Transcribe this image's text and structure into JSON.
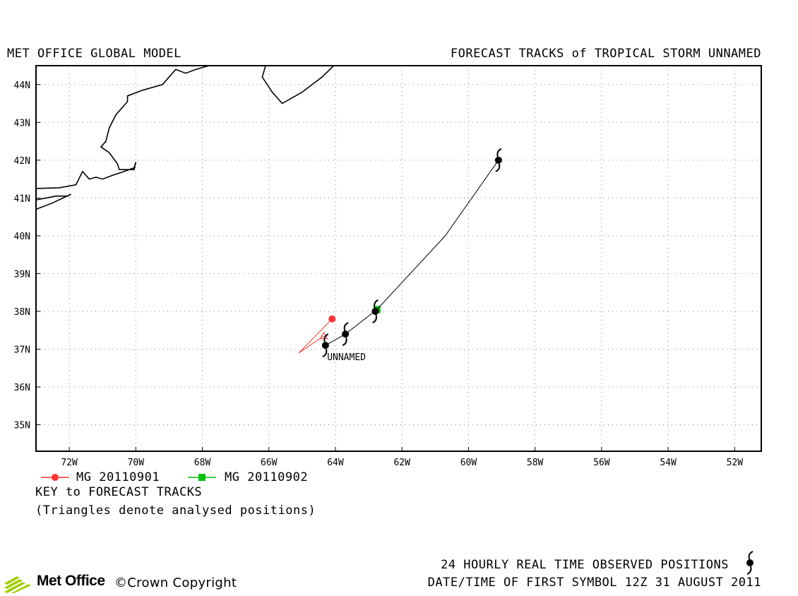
{
  "header": {
    "left_title": "MET OFFICE GLOBAL MODEL",
    "right_title": "FORECAST TRACKS of TROPICAL STORM UNNAMED"
  },
  "map": {
    "lon_range": [
      -73,
      -51.2
    ],
    "lat_range": [
      34.3,
      44.5
    ],
    "lat_ticks": [
      {
        "value": 35,
        "label": "35N"
      },
      {
        "value": 36,
        "label": "36N"
      },
      {
        "value": 37,
        "label": "37N"
      },
      {
        "value": 38,
        "label": "38N"
      },
      {
        "value": 39,
        "label": "39N"
      },
      {
        "value": 40,
        "label": "40N"
      },
      {
        "value": 41,
        "label": "41N"
      },
      {
        "value": 42,
        "label": "42N"
      },
      {
        "value": 43,
        "label": "43N"
      },
      {
        "value": 44,
        "label": "44N"
      }
    ],
    "lon_ticks": [
      {
        "value": -72,
        "label": "72W"
      },
      {
        "value": -70,
        "label": "70W"
      },
      {
        "value": -68,
        "label": "68W"
      },
      {
        "value": -66,
        "label": "66W"
      },
      {
        "value": -64,
        "label": "64W"
      },
      {
        "value": -62,
        "label": "62W"
      },
      {
        "value": -60,
        "label": "60W"
      },
      {
        "value": -58,
        "label": "58W"
      },
      {
        "value": -56,
        "label": "56W"
      },
      {
        "value": -54,
        "label": "54W"
      },
      {
        "value": -52,
        "label": "52W"
      }
    ],
    "grid": "dotted",
    "coastlines": [
      [
        [
          -73,
          41.25
        ],
        [
          -72.3,
          41.27
        ],
        [
          -71.8,
          41.35
        ],
        [
          -71.6,
          41.7
        ],
        [
          -71.4,
          41.5
        ],
        [
          -71.2,
          41.55
        ],
        [
          -71,
          41.5
        ],
        [
          -70.7,
          41.6
        ],
        [
          -70.35,
          41.7
        ],
        [
          -70.05,
          41.8
        ],
        [
          -70,
          41.95
        ],
        [
          -70.05,
          41.75
        ],
        [
          -70.5,
          41.75
        ],
        [
          -70.55,
          41.9
        ],
        [
          -70.8,
          42.2
        ],
        [
          -71.05,
          42.35
        ],
        [
          -70.9,
          42.5
        ],
        [
          -70.8,
          42.85
        ],
        [
          -70.6,
          43.2
        ],
        [
          -70.25,
          43.55
        ],
        [
          -70.25,
          43.7
        ],
        [
          -69.8,
          43.85
        ],
        [
          -69.2,
          44
        ],
        [
          -68.8,
          44.4
        ],
        [
          -68.5,
          44.3
        ],
        [
          -68.2,
          44.4
        ],
        [
          -67.8,
          44.5
        ]
      ],
      [
        [
          -73,
          40.95
        ],
        [
          -72.4,
          41.05
        ],
        [
          -72.05,
          41.05
        ],
        [
          -71.95,
          41.1
        ],
        [
          -72.5,
          40.87
        ],
        [
          -73,
          40.7
        ]
      ],
      [
        [
          -66.1,
          44.5
        ],
        [
          -66.2,
          44.2
        ],
        [
          -65.9,
          43.8
        ],
        [
          -65.6,
          43.5
        ],
        [
          -65.0,
          43.8
        ],
        [
          -64.4,
          44.2
        ],
        [
          -64.05,
          44.5
        ]
      ]
    ],
    "track": {
      "observed_positions": [
        [
          -64.3,
          37.1
        ],
        [
          -63.7,
          37.4
        ],
        [
          -62.8,
          38.0
        ],
        [
          -59.1,
          42.0
        ]
      ],
      "observed_line": [
        [
          -64.3,
          37.1
        ],
        [
          -63.7,
          37.4
        ],
        [
          -62.75,
          38.05
        ],
        [
          -60.7,
          40.0
        ],
        [
          -59.1,
          42.0
        ]
      ],
      "label": "UNNAMED",
      "label_pos": [
        -64.25,
        36.8
      ]
    },
    "forecast_tracks": [
      {
        "name": "MG 20110901",
        "color": "#ff3333",
        "marker": "circle",
        "points": [
          [
            -64.1,
            37.8
          ],
          [
            -65.1,
            36.9
          ],
          [
            -64.35,
            37.35
          ]
        ]
      },
      {
        "name": "MG 20110902",
        "color": "#00c000",
        "marker": "square",
        "points": [
          [
            -62.75,
            38.05
          ]
        ]
      }
    ],
    "analysed_triangle": [
      -64.35,
      37.35
    ]
  },
  "legend": {
    "items": [
      {
        "label": "MG 20110901",
        "color": "#ff3333",
        "marker": "circle"
      },
      {
        "label": "MG 20110902",
        "color": "#00c000",
        "marker": "square"
      }
    ],
    "key_title": "KEY to FORECAST TRACKS",
    "note": "(Triangles denote analysed positions)"
  },
  "footer": {
    "logo_text": "Met Office",
    "logo_color": "#a0d000",
    "copyright": "©Crown Copyright",
    "observed_note": "24 HOURLY REAL TIME OBSERVED POSITIONS",
    "first_symbol": "DATE/TIME OF FIRST SYMBOL 12Z 31 AUGUST 2011"
  }
}
